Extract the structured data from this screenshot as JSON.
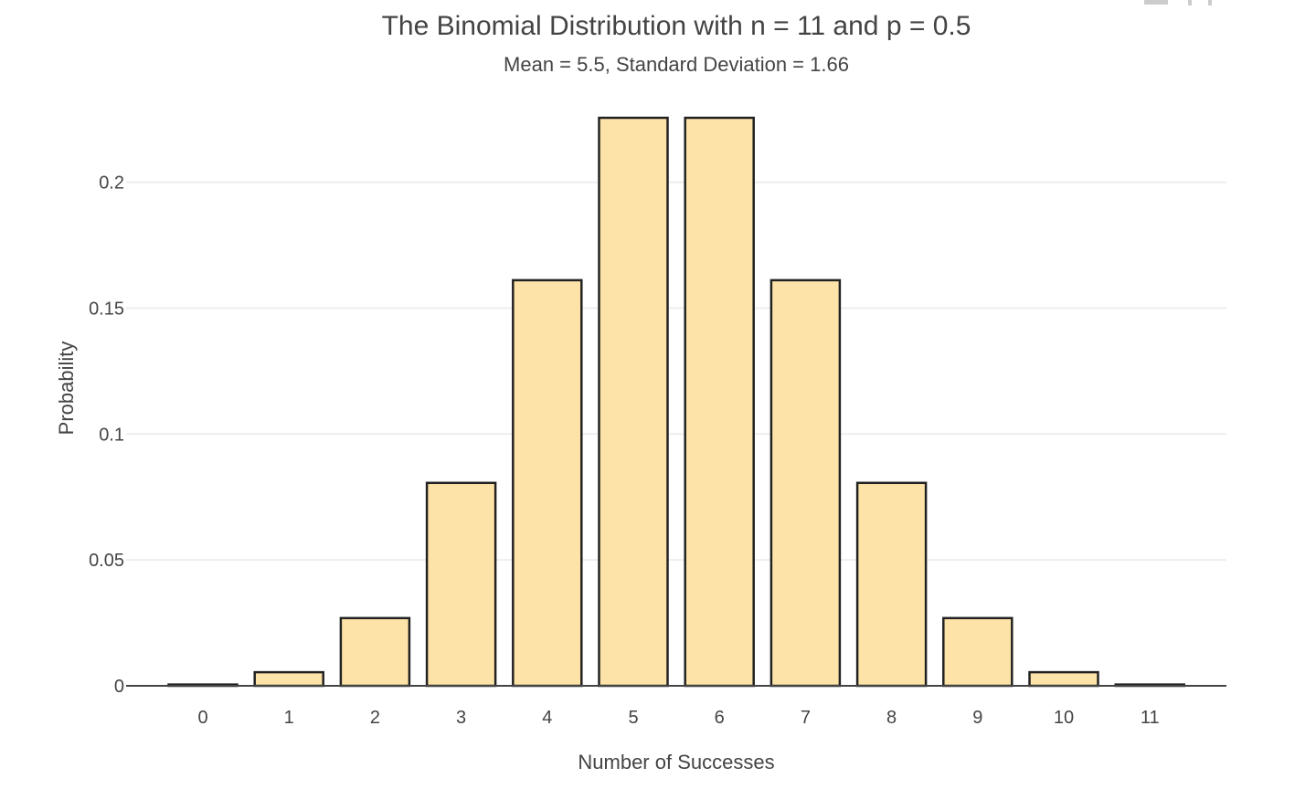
{
  "chart_data": {
    "type": "bar",
    "title": "The Binomial Distribution with n = 11 and p = 0.5",
    "subtitle": "Mean = 5.5, Standard Deviation = 1.66",
    "xlabel": "Number of Successes",
    "ylabel": "Probability",
    "categories": [
      "0",
      "1",
      "2",
      "3",
      "4",
      "5",
      "6",
      "7",
      "8",
      "9",
      "10",
      "11"
    ],
    "values": [
      0.0005,
      0.0054,
      0.0269,
      0.0806,
      0.1611,
      0.2256,
      0.2256,
      0.1611,
      0.0806,
      0.0269,
      0.0054,
      0.0005
    ],
    "ylim": [
      0,
      0.2256
    ],
    "yticks": [
      0,
      0.05,
      0.1,
      0.15,
      0.2
    ],
    "ytick_labels": [
      "0",
      "0.05",
      "0.1",
      "0.15",
      "0.2"
    ],
    "grid": true,
    "legend": "none",
    "colors": {
      "bar_fill": "#fde3a7",
      "bar_stroke": "#222222",
      "gridline": "#eeeeee",
      "axis": "#444444",
      "text": "#444444"
    }
  }
}
